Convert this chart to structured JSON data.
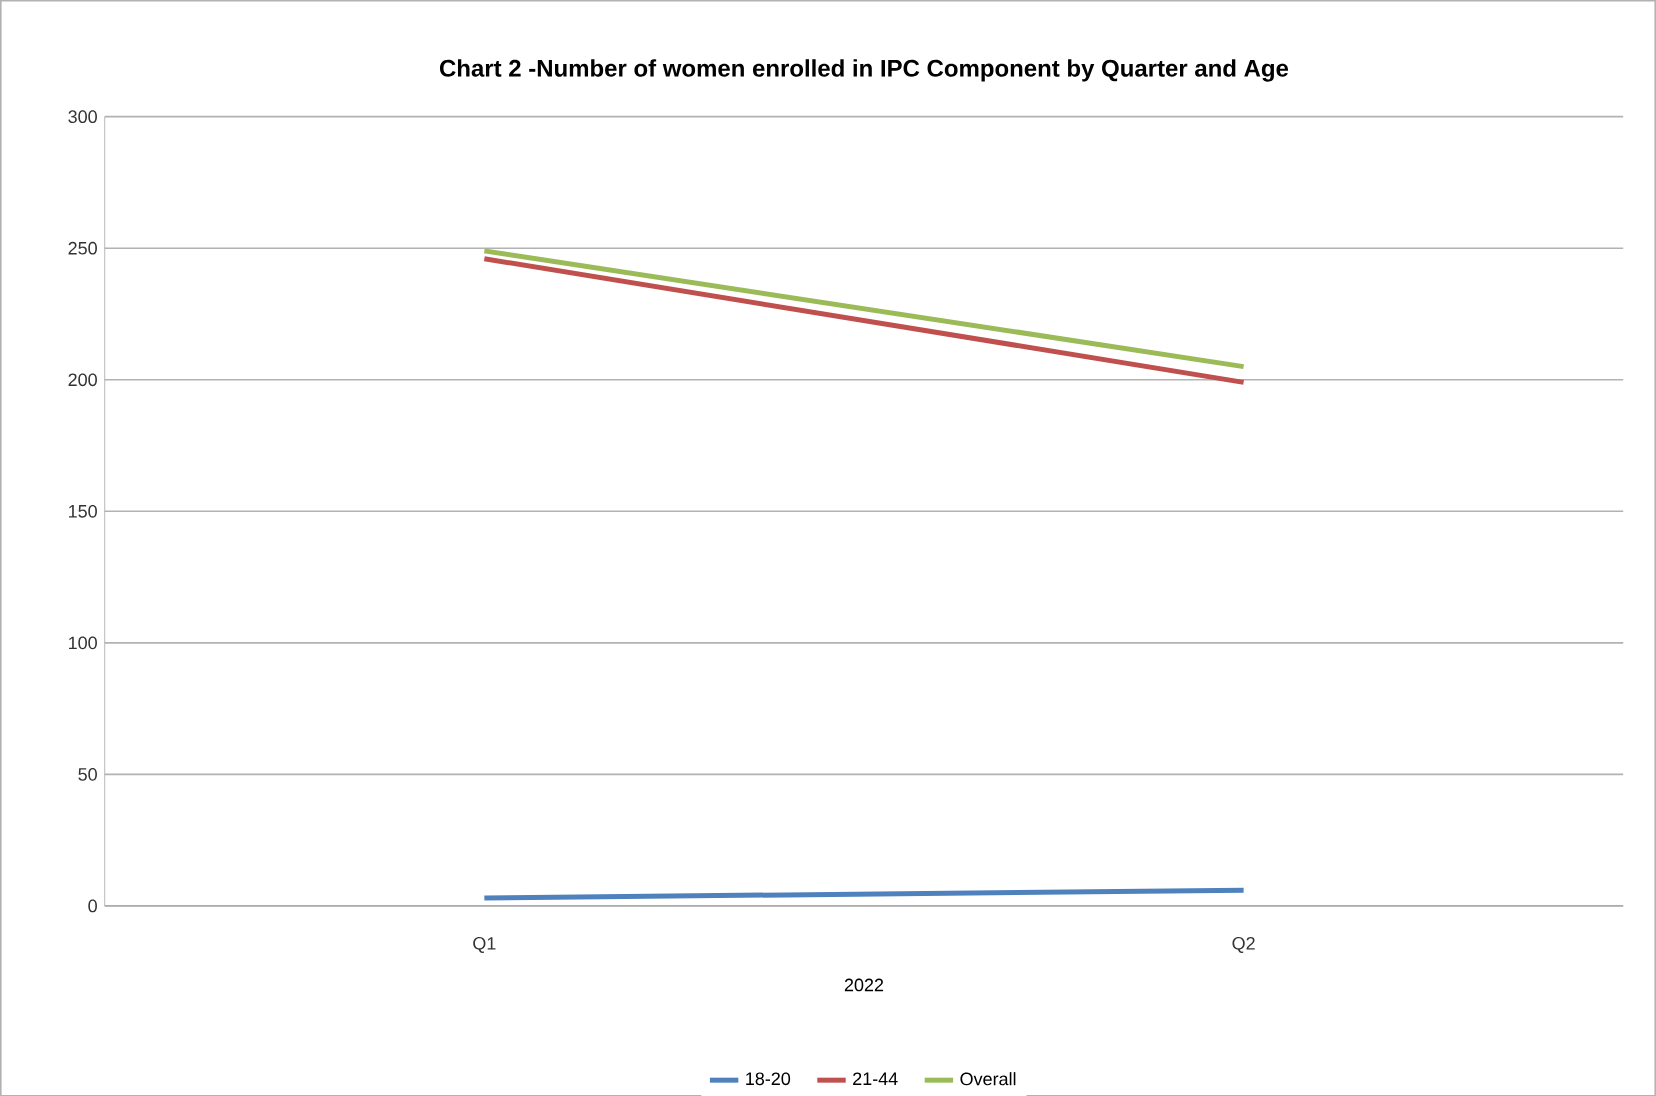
{
  "chart_data": {
    "type": "line",
    "title": "Chart 2 -Number of women enrolled in IPC Component by Quarter and Age",
    "xlabel": "2022",
    "categories": [
      "Q1",
      "Q2"
    ],
    "series": [
      {
        "name": "18-20",
        "color": "#4f81bd",
        "values": [
          3,
          6
        ]
      },
      {
        "name": "21-44",
        "color": "#c0504d",
        "values": [
          246,
          199
        ]
      },
      {
        "name": "Overall",
        "color": "#9bbb59",
        "values": [
          249,
          205
        ]
      }
    ],
    "ylim": [
      0,
      300
    ],
    "yticks": [
      0,
      50,
      100,
      150,
      200,
      250,
      300
    ],
    "grid": "y",
    "legend": "bottom",
    "marker": "none",
    "line_style": "solid"
  }
}
